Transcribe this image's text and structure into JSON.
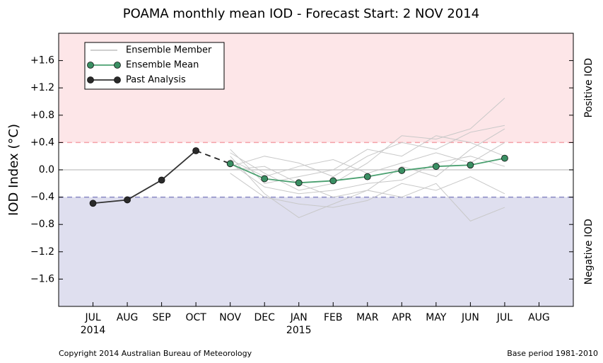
{
  "chart_data": {
    "type": "line",
    "title": "POAMA monthly mean IOD - Forecast Start: 2 NOV 2014",
    "y_label": "IOD Index (°C)",
    "categories": [
      "JUL",
      "AUG",
      "SEP",
      "OCT",
      "NOV",
      "DEC",
      "JAN",
      "FEB",
      "MAR",
      "APR",
      "MAY",
      "JUN",
      "JUL",
      "AUG"
    ],
    "year_labels": [
      "2014",
      null,
      null,
      null,
      null,
      null,
      "2015",
      null,
      null,
      null,
      null,
      null,
      null,
      null
    ],
    "ylim": [
      -2.0,
      2.0
    ],
    "yticks": [
      {
        "value": -1.6,
        "label": "−1.6"
      },
      {
        "value": -1.2,
        "label": "−1.2"
      },
      {
        "value": -0.8,
        "label": "−0.8"
      },
      {
        "value": -0.4,
        "label": "−0.4"
      },
      {
        "value": 0,
        "label": "0.0"
      },
      {
        "value": 0.4,
        "label": "+0.4"
      },
      {
        "value": 0.8,
        "label": "+0.8"
      },
      {
        "value": 1.2,
        "label": "+1.2"
      },
      {
        "value": 1.6,
        "label": "+1.6"
      }
    ],
    "reference_line": 0,
    "positive_threshold": 0.4,
    "positive_color": "#fde6e8",
    "positive_line_color": "#f4a0a8",
    "positive_label": "Positive IOD",
    "negative_threshold": -0.4,
    "negative_color": "#dfdfef",
    "negative_line_color": "#8888c4",
    "negative_label": "Negative IOD",
    "legend": "upper left",
    "member_name": "Ensemble Member",
    "member_color": "#c8c8c8",
    "members": [
      [
        null,
        null,
        null,
        null,
        0.25,
        -0.05,
        -0.3,
        -0.2,
        0.1,
        0.5,
        0.45,
        0.6,
        1.05,
        null
      ],
      [
        null,
        null,
        null,
        null,
        0.2,
        -0.35,
        -0.7,
        -0.5,
        -0.3,
        -0.4,
        -0.2,
        -0.75,
        -0.55,
        null
      ],
      [
        null,
        null,
        null,
        null,
        0.05,
        0.2,
        0.1,
        -0.1,
        0.2,
        0.4,
        0.3,
        0.55,
        0.65,
        null
      ],
      [
        null,
        null,
        null,
        null,
        -0.05,
        -0.4,
        -0.5,
        -0.55,
        -0.45,
        -0.2,
        -0.3,
        -0.1,
        -0.35,
        null
      ],
      [
        null,
        null,
        null,
        null,
        0.15,
        -0.1,
        0.05,
        0.15,
        -0.05,
        0.1,
        0.25,
        0.1,
        0.4,
        null
      ],
      [
        null,
        null,
        null,
        null,
        0.1,
        -0.25,
        -0.35,
        -0.3,
        -0.2,
        -0.15,
        0.1,
        0.2,
        0.05,
        null
      ],
      [
        null,
        null,
        null,
        null,
        0.0,
        0.05,
        -0.2,
        -0.4,
        -0.3,
        0.05,
        -0.1,
        0.3,
        0.6,
        null
      ],
      [
        null,
        null,
        null,
        null,
        0.3,
        -0.2,
        -0.1,
        0.0,
        0.3,
        0.2,
        0.5,
        0.4,
        0.2,
        null
      ]
    ],
    "series": [
      {
        "name": "Ensemble Mean",
        "color": "#4aa070",
        "marker_color": "#3a8f63",
        "values": [
          null,
          null,
          null,
          null,
          0.09,
          -0.13,
          -0.19,
          -0.16,
          -0.1,
          -0.01,
          0.05,
          0.07,
          0.17,
          null
        ]
      },
      {
        "name": "Past Analysis",
        "color": "#333333",
        "marker_color": "#2a2a2a",
        "values": [
          -0.49,
          -0.44,
          -0.15,
          0.28,
          null,
          null,
          null,
          null,
          null,
          null,
          null,
          null,
          null,
          null
        ]
      }
    ],
    "footer_left": "Copyright 2014 Australian Bureau of Meteorology",
    "footer_right": "Base period 1981-2010"
  }
}
